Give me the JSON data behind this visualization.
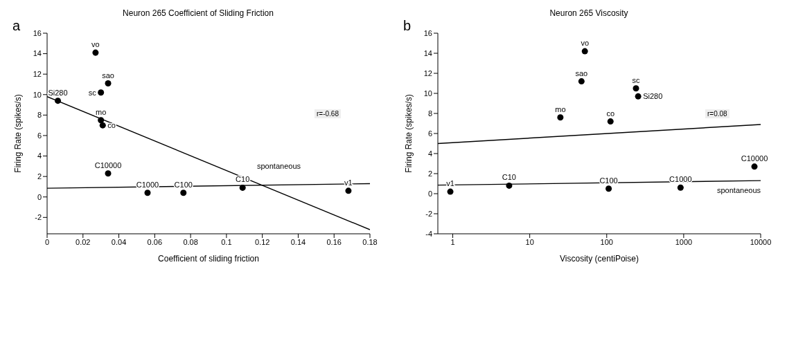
{
  "chart_data": [
    {
      "type": "scatter",
      "title": "Neuron 265 Coefficient of Sliding Friction",
      "xlabel": "Coefficient of sliding friction",
      "ylabel": "Firing Rate (spikes/s)",
      "annotations": [
        "a",
        "r=-0.68"
      ],
      "xlim": [
        0,
        0.18
      ],
      "xticks": [
        0,
        0.02,
        0.04,
        0.06,
        0.08,
        0.1,
        0.12,
        0.14,
        0.16,
        0.18
      ],
      "ylim": [
        -3.6,
        16
      ],
      "yticks": [
        -2,
        0,
        2,
        4,
        6,
        8,
        10,
        12,
        14,
        16
      ],
      "grid": false,
      "legend": false,
      "marker": "circle",
      "line_style": "solid",
      "series": [
        {
          "name": "vo",
          "color": "#000000",
          "x": [
            0.027
          ],
          "values": [
            14.1
          ]
        },
        {
          "name": "sao",
          "color": "#000000",
          "x": [
            0.034
          ],
          "values": [
            11.1
          ]
        },
        {
          "name": "sc",
          "color": "#000000",
          "x": [
            0.03
          ],
          "values": [
            10.2
          ]
        },
        {
          "name": "Si280",
          "color": "#000000",
          "x": [
            0.006
          ],
          "values": [
            9.4
          ]
        },
        {
          "name": "mo",
          "color": "#000000",
          "x": [
            0.03
          ],
          "values": [
            7.5
          ]
        },
        {
          "name": "co",
          "color": "#000000",
          "x": [
            0.031
          ],
          "values": [
            7.0
          ]
        },
        {
          "name": "C10000",
          "color": "#000000",
          "x": [
            0.034
          ],
          "values": [
            2.3
          ]
        },
        {
          "name": "C1000",
          "color": "#000000",
          "x": [
            0.056
          ],
          "values": [
            0.4
          ]
        },
        {
          "name": "C100",
          "color": "#000000",
          "x": [
            0.076
          ],
          "values": [
            0.4
          ]
        },
        {
          "name": "C10",
          "color": "#000000",
          "x": [
            0.109
          ],
          "values": [
            0.9
          ]
        },
        {
          "name": "v1",
          "color": "#000000",
          "x": [
            0.168
          ],
          "values": [
            0.6
          ]
        },
        {
          "type": "line",
          "marker": "none",
          "color": "#000000",
          "x": [
            0,
            0.18
          ],
          "values": [
            9.8,
            -3.2
          ]
        },
        {
          "type": "line",
          "marker": "none",
          "name": "spontaneous",
          "color": "#000000",
          "x": [
            0,
            0.18
          ],
          "values": [
            0.85,
            1.3
          ]
        }
      ]
    },
    {
      "type": "scatter",
      "title": "Neuron 265 Viscosity",
      "xlabel": "Viscosity (centiPoise)",
      "ylabel": "Firing Rate (spikes/s)",
      "annotations": [
        "b",
        "r=0.08"
      ],
      "log": "x",
      "xlim": [
        0.64,
        10000
      ],
      "xticks": [
        1,
        10,
        100,
        1000,
        10000
      ],
      "ylim": [
        -4,
        16
      ],
      "yticks": [
        -4,
        -2,
        0,
        2,
        4,
        6,
        8,
        10,
        12,
        14,
        16
      ],
      "grid": false,
      "legend": false,
      "marker": "circle",
      "line_style": "solid",
      "series": [
        {
          "name": "vo",
          "color": "#000000",
          "x": [
            52
          ],
          "values": [
            14.2
          ]
        },
        {
          "name": "sao",
          "color": "#000000",
          "x": [
            47
          ],
          "values": [
            11.2
          ]
        },
        {
          "name": "sc",
          "color": "#000000",
          "x": [
            240
          ],
          "values": [
            10.5
          ]
        },
        {
          "name": "Si280",
          "color": "#000000",
          "x": [
            256
          ],
          "values": [
            9.7
          ]
        },
        {
          "name": "mo",
          "color": "#000000",
          "x": [
            25
          ],
          "values": [
            7.6
          ]
        },
        {
          "name": "co",
          "color": "#000000",
          "x": [
            112
          ],
          "values": [
            7.2
          ]
        },
        {
          "name": "C10000",
          "color": "#000000",
          "x": [
            8300
          ],
          "values": [
            2.7
          ]
        },
        {
          "name": "C1000",
          "color": "#000000",
          "x": [
            910
          ],
          "values": [
            0.6
          ]
        },
        {
          "name": "C100",
          "color": "#000000",
          "x": [
            106
          ],
          "values": [
            0.5
          ]
        },
        {
          "name": "C10",
          "color": "#000000",
          "x": [
            5.4
          ],
          "values": [
            0.8
          ]
        },
        {
          "name": "v1",
          "color": "#000000",
          "x": [
            0.93
          ],
          "values": [
            0.2
          ]
        },
        {
          "type": "line",
          "marker": "none",
          "color": "#000000",
          "x": [
            0.64,
            10000
          ],
          "values": [
            5.0,
            6.9
          ]
        },
        {
          "type": "line",
          "marker": "none",
          "name": "spontaneous",
          "color": "#000000",
          "x": [
            0.64,
            10000
          ],
          "values": [
            0.85,
            1.3
          ]
        }
      ]
    }
  ]
}
